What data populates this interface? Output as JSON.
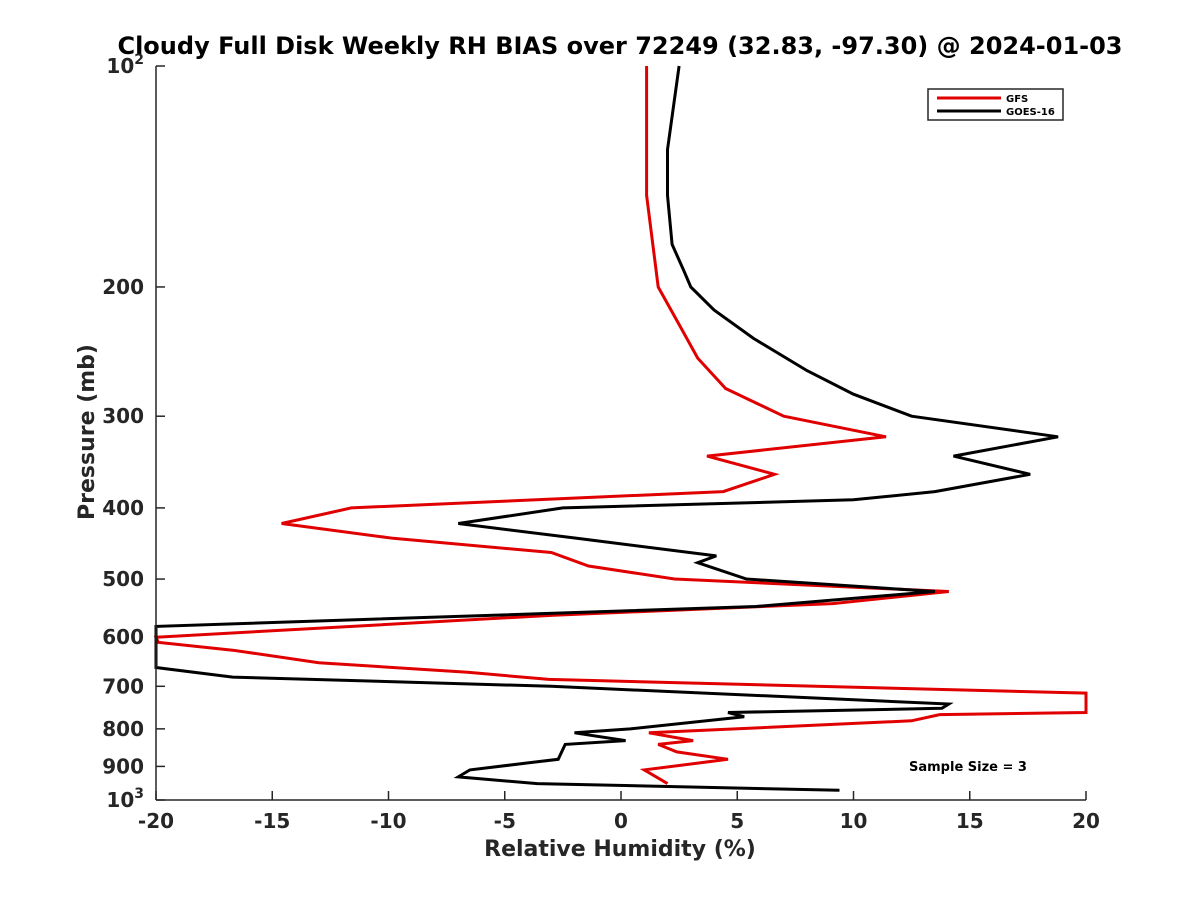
{
  "chart_data": {
    "type": "line",
    "title": "Cloudy Full Disk Weekly RH BIAS over 72249 (32.83, -97.30) @ 2024-01-03",
    "xlabel": "Relative Humidity (%)",
    "ylabel": "Pressure (mb)",
    "xlim": [
      -20,
      20
    ],
    "ylim": [
      100,
      1000
    ],
    "y_scale": "log",
    "y_reversed": true,
    "x_ticks": [
      "-20",
      "-15",
      "-10",
      "-5",
      "0",
      "5",
      "10",
      "15",
      "20"
    ],
    "y_ticks": [
      {
        "value": 100,
        "base": "10",
        "exp": "2"
      },
      {
        "value": 200,
        "label": "200"
      },
      {
        "value": 300,
        "label": "300"
      },
      {
        "value": 400,
        "label": "400"
      },
      {
        "value": 500,
        "label": "500"
      },
      {
        "value": 600,
        "label": "600"
      },
      {
        "value": 700,
        "label": "700"
      },
      {
        "value": 800,
        "label": "800"
      },
      {
        "value": 900,
        "label": "900"
      },
      {
        "value": 1000,
        "base": "10",
        "exp": "3"
      }
    ],
    "legend_position": "top-right",
    "grid": false,
    "annotation": "Sample Size = 3",
    "series": [
      {
        "name": "GFS",
        "color": "#e00000",
        "points": [
          [
            1.1,
            100
          ],
          [
            1.1,
            150
          ],
          [
            1.6,
            200
          ],
          [
            2.5,
            225
          ],
          [
            3.3,
            250
          ],
          [
            4.5,
            275
          ],
          [
            7.0,
            300
          ],
          [
            11.4,
            320
          ],
          [
            3.7,
            340
          ],
          [
            6.6,
            360
          ],
          [
            4.4,
            380
          ],
          [
            -11.6,
            400
          ],
          [
            -14.6,
            420
          ],
          [
            -9.8,
            440
          ],
          [
            -3.0,
            460
          ],
          [
            -1.4,
            480
          ],
          [
            2.3,
            500
          ],
          [
            14.1,
            520
          ],
          [
            9.1,
            540
          ],
          [
            -2.9,
            560
          ],
          [
            -20.0,
            600
          ],
          [
            -19.9,
            610
          ],
          [
            -16.7,
            625
          ],
          [
            -13.0,
            650
          ],
          [
            -6.6,
            670
          ],
          [
            -3.1,
            685
          ],
          [
            20.0,
            715
          ],
          [
            20.0,
            760
          ],
          [
            13.7,
            765
          ],
          [
            12.5,
            780
          ],
          [
            1.2,
            810
          ],
          [
            3.1,
            830
          ],
          [
            1.6,
            840
          ],
          [
            2.4,
            860
          ],
          [
            4.6,
            880
          ],
          [
            1.0,
            910
          ],
          [
            2.0,
            950
          ]
        ]
      },
      {
        "name": "GOES-16",
        "color": "#000000",
        "points": [
          [
            2.5,
            100
          ],
          [
            2.0,
            130
          ],
          [
            2.0,
            150
          ],
          [
            2.2,
            175
          ],
          [
            2.7,
            190
          ],
          [
            3.0,
            200
          ],
          [
            4.0,
            215
          ],
          [
            5.7,
            235
          ],
          [
            8.0,
            260
          ],
          [
            10.0,
            280
          ],
          [
            12.5,
            300
          ],
          [
            18.8,
            320
          ],
          [
            14.3,
            340
          ],
          [
            17.6,
            360
          ],
          [
            13.5,
            380
          ],
          [
            10.0,
            390
          ],
          [
            -2.5,
            400
          ],
          [
            -7.0,
            420
          ],
          [
            -1.9,
            440
          ],
          [
            4.1,
            465
          ],
          [
            3.3,
            475
          ],
          [
            5.4,
            500
          ],
          [
            13.5,
            520
          ],
          [
            5.8,
            545
          ],
          [
            -20.0,
            580
          ],
          [
            -20.0,
            660
          ],
          [
            -16.7,
            680
          ],
          [
            -3.0,
            700
          ],
          [
            14.1,
            740
          ],
          [
            13.8,
            750
          ],
          [
            4.6,
            760
          ],
          [
            5.3,
            770
          ],
          [
            0.4,
            800
          ],
          [
            -2.0,
            810
          ],
          [
            0.2,
            830
          ],
          [
            -2.4,
            840
          ],
          [
            -2.7,
            880
          ],
          [
            -4.0,
            890
          ],
          [
            -6.5,
            910
          ],
          [
            -7.0,
            930
          ],
          [
            -3.6,
            950
          ],
          [
            9.4,
            970
          ]
        ]
      }
    ]
  }
}
